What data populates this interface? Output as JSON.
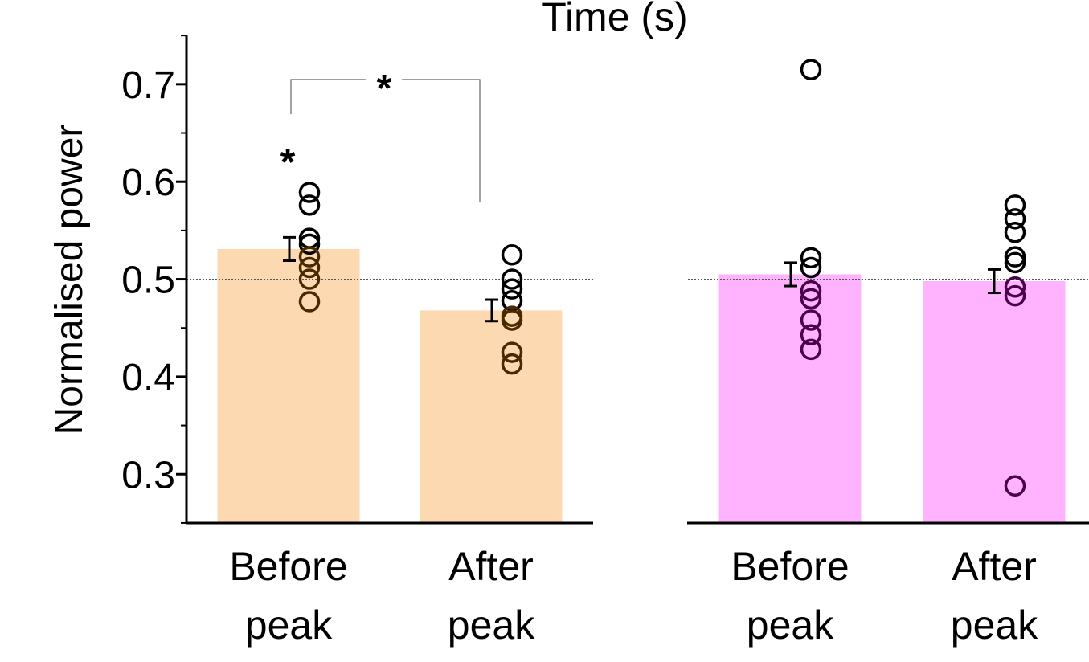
{
  "header": {
    "title": "Time (s)"
  },
  "chart_data": [
    {
      "type": "bar",
      "ylabel": "Normalised power",
      "ylim": [
        0.25,
        0.75
      ],
      "yticks": [
        "0.3",
        "0.4",
        "0.5",
        "0.6",
        "0.7"
      ],
      "reference_line": 0.5,
      "categories": [
        [
          "Before",
          "peak"
        ],
        [
          "After",
          "peak"
        ]
      ],
      "bar_color": "#fcd9b0",
      "point_dark_color": "#4a2800",
      "values": [
        0.531,
        0.468
      ],
      "sem": [
        0.012,
        0.011
      ],
      "points": [
        [
          0.589,
          0.576,
          0.542,
          0.536,
          0.523,
          0.512,
          0.5,
          0.477
        ],
        [
          0.525,
          0.5,
          0.49,
          0.478,
          0.462,
          0.458,
          0.425,
          0.413
        ]
      ],
      "significance": [
        {
          "label": "*",
          "type": "single",
          "category": 0
        },
        {
          "label": "*",
          "type": "bracket",
          "between": [
            0,
            1
          ]
        }
      ]
    },
    {
      "type": "bar",
      "ylim": [
        0.25,
        0.75
      ],
      "reference_line": 0.5,
      "categories": [
        [
          "Before",
          "peak"
        ],
        [
          "After",
          "peak"
        ]
      ],
      "bar_color": "#ffb3ff",
      "point_dark_color": "#4a004a",
      "values": [
        0.505,
        0.498
      ],
      "sem": [
        0.012,
        0.012
      ],
      "points": [
        [
          0.715,
          0.522,
          0.512,
          0.488,
          0.48,
          0.458,
          0.443,
          0.428
        ],
        [
          0.576,
          0.562,
          0.548,
          0.523,
          0.517,
          0.492,
          0.483,
          0.288
        ]
      ],
      "significance": []
    }
  ]
}
